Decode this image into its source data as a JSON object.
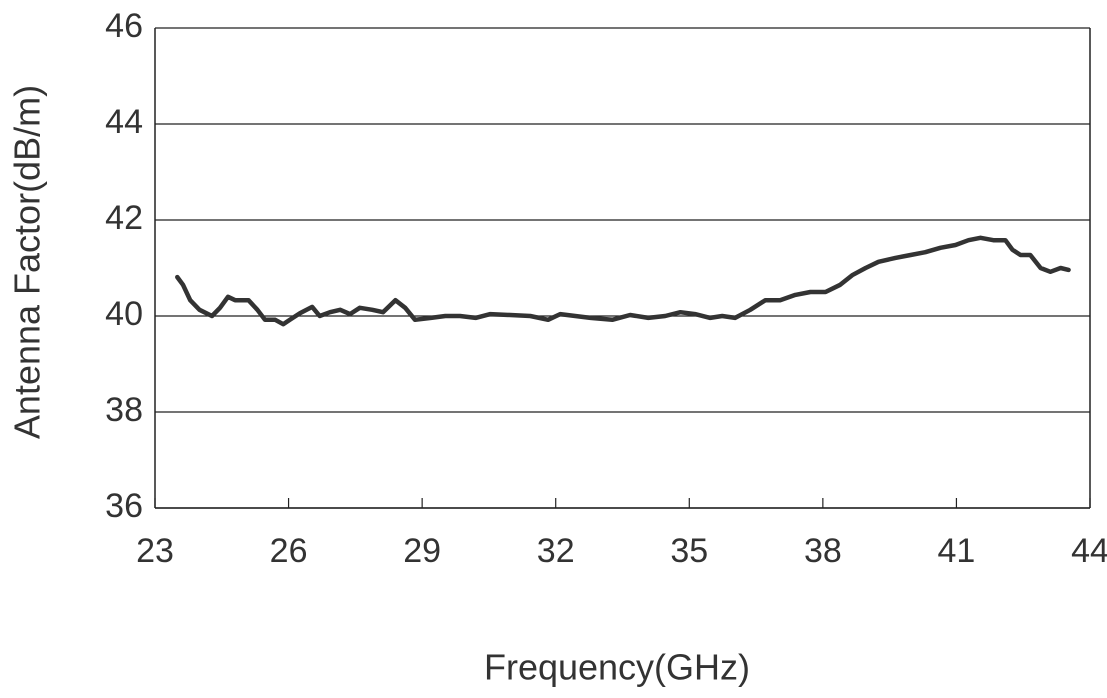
{
  "chart_data": {
    "type": "line",
    "xlabel": "Frequency(GHz)",
    "ylabel": "Antenna Factor(dB/m)",
    "xlim": [
      23,
      44
    ],
    "xticks": [
      23,
      26,
      29,
      32,
      35,
      38,
      41,
      44
    ],
    "ylim": [
      36,
      46
    ],
    "yticks": [
      36,
      38,
      40,
      42,
      44,
      46
    ],
    "grid": true,
    "series": [
      {
        "color": "#333333",
        "x": [
          23.5,
          23.63,
          23.79,
          24.0,
          24.28,
          24.46,
          24.64,
          24.8,
          25.1,
          25.3,
          25.47,
          25.7,
          25.88,
          26.03,
          26.26,
          26.53,
          26.7,
          26.93,
          27.16,
          27.38,
          27.6,
          27.88,
          28.12,
          28.4,
          28.62,
          28.84,
          29.2,
          29.52,
          29.85,
          30.2,
          30.53,
          30.98,
          31.43,
          31.83,
          32.1,
          32.44,
          32.78,
          33.27,
          33.67,
          34.08,
          34.46,
          34.8,
          35.13,
          35.47,
          35.74,
          36.03,
          36.37,
          36.71,
          37.04,
          37.38,
          37.72,
          38.06,
          38.39,
          38.66,
          38.96,
          39.25,
          39.63,
          39.97,
          40.3,
          40.64,
          40.98,
          41.27,
          41.54,
          41.83,
          42.1,
          42.26,
          42.44,
          42.66,
          42.89,
          43.11,
          43.34,
          43.52
        ],
        "values": [
          40.81,
          40.65,
          40.33,
          40.13,
          40.0,
          40.17,
          40.4,
          40.33,
          40.33,
          40.13,
          39.92,
          39.92,
          39.83,
          39.92,
          40.06,
          40.19,
          40.0,
          40.08,
          40.13,
          40.04,
          40.17,
          40.13,
          40.08,
          40.33,
          40.17,
          39.92,
          39.96,
          40.0,
          40.0,
          39.96,
          40.04,
          40.02,
          40.0,
          39.92,
          40.04,
          40.0,
          39.96,
          39.92,
          40.02,
          39.96,
          40.0,
          40.08,
          40.04,
          39.96,
          40.0,
          39.96,
          40.13,
          40.33,
          40.33,
          40.44,
          40.5,
          40.5,
          40.65,
          40.85,
          41.0,
          41.13,
          41.21,
          41.27,
          41.33,
          41.42,
          41.48,
          41.58,
          41.63,
          41.58,
          41.58,
          41.38,
          41.27,
          41.27,
          41.0,
          40.92,
          41.0,
          40.96
        ]
      }
    ]
  }
}
